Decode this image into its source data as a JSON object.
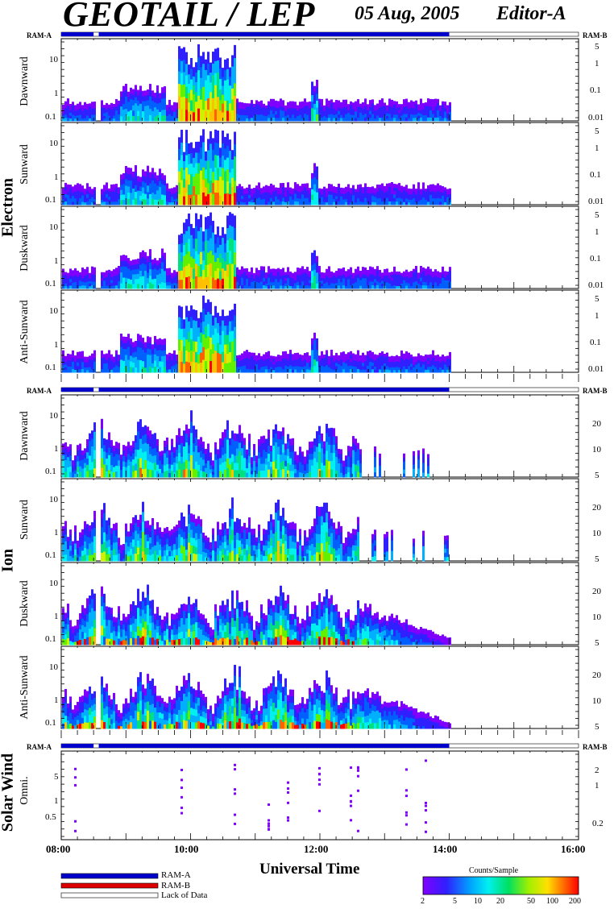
{
  "header": {
    "title": "GEOTAIL / LEP",
    "date": "05 Aug, 2005",
    "editor": "Editor-A"
  },
  "groups": {
    "electron": "Electron",
    "ion": "Ion",
    "solar_wind": "Solar Wind"
  },
  "panel_labels": {
    "e_dawn": "Dawnward",
    "e_sun": "Sunward",
    "e_dusk": "Duskward",
    "e_anti": "Anti-Sunward",
    "i_dawn": "Dawnward",
    "i_sun": "Sunward",
    "i_dusk": "Duskward",
    "i_anti": "Anti-Sunward",
    "sw_omni": "Omni."
  },
  "ram": {
    "a": "RAM-A",
    "b": "RAM-B"
  },
  "left_ticks": {
    "t1": "10",
    "t2": "1",
    "t3": "0.1",
    "t4": "5",
    "t5": "1",
    "t6": "0.5"
  },
  "right_ticks": {
    "e1": "5",
    "e2": "1",
    "e3": "0.1",
    "e4": "0.01",
    "i1": "20",
    "i2": "10",
    "i3": "5",
    "s1": "2",
    "s2": "1",
    "s3": "0.2"
  },
  "xaxis": {
    "title": "Universal Time",
    "labels": [
      "08:00",
      "10:00",
      "12:00",
      "14:00",
      "16:00"
    ]
  },
  "legend": {
    "ram_a": "RAM-A",
    "ram_b": "RAM-B",
    "lack": "Lack of Data"
  },
  "colorbar": {
    "title": "Counts/Sample",
    "ticks": [
      "2",
      "5",
      "10",
      "20",
      "50",
      "100",
      "200"
    ]
  },
  "colors": {
    "ram_a": "#0000cc",
    "ram_b": "#dd0000"
  },
  "chart_data": {
    "type": "heatmap",
    "x_range": [
      "08:00",
      "16:00"
    ],
    "data_end": "14:00",
    "data_gap": [
      "08:30",
      "08:35"
    ],
    "panels": [
      {
        "group": "Electron",
        "name": "Dawnward",
        "y_left_range": [
          0.08,
          40
        ],
        "y_right_ticks": [
          5,
          1,
          0.1,
          0.01
        ]
      },
      {
        "group": "Electron",
        "name": "Sunward",
        "y_left_range": [
          0.08,
          40
        ],
        "y_right_ticks": [
          5,
          1,
          0.1,
          0.01
        ]
      },
      {
        "group": "Electron",
        "name": "Duskward",
        "y_left_range": [
          0.08,
          40
        ],
        "y_right_ticks": [
          5,
          1,
          0.1,
          0.01
        ]
      },
      {
        "group": "Electron",
        "name": "Anti-Sunward",
        "y_left_range": [
          0.08,
          40
        ],
        "y_right_ticks": [
          5,
          1,
          0.1,
          0.01
        ]
      },
      {
        "group": "Ion",
        "name": "Dawnward",
        "y_left_range": [
          0.08,
          40
        ],
        "y_right_ticks": [
          20,
          10,
          5
        ]
      },
      {
        "group": "Ion",
        "name": "Sunward",
        "y_left_range": [
          0.08,
          40
        ],
        "y_right_ticks": [
          20,
          10,
          5
        ]
      },
      {
        "group": "Ion",
        "name": "Duskward",
        "y_left_range": [
          0.08,
          40
        ],
        "y_right_ticks": [
          20,
          10,
          5
        ]
      },
      {
        "group": "Ion",
        "name": "Anti-Sunward",
        "y_left_range": [
          0.08,
          40
        ],
        "y_right_ticks": [
          20,
          10,
          5
        ]
      },
      {
        "group": "Solar Wind",
        "name": "Omni.",
        "y_left_range": [
          0.2,
          10
        ],
        "y_right_ticks": [
          2,
          1,
          0.2
        ]
      }
    ],
    "colorbar": {
      "label": "Counts/Sample",
      "range": [
        2,
        200
      ],
      "scale": "log",
      "ticks": [
        2,
        5,
        10,
        20,
        50,
        100,
        200
      ]
    }
  }
}
